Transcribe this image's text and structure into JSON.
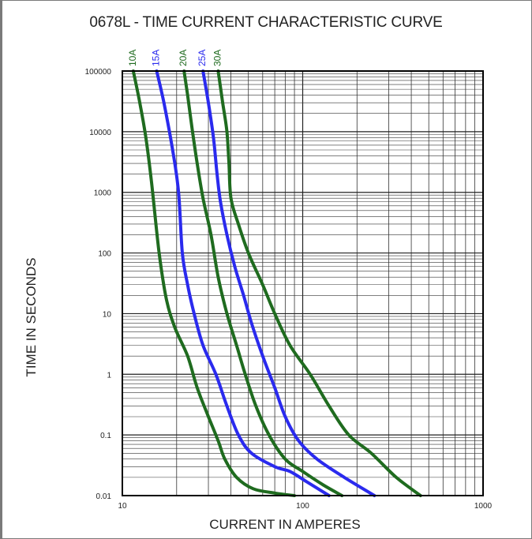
{
  "chart_data": {
    "type": "line",
    "title": "0678L - TIME CURRENT CHARACTERISTIC CURVE",
    "xlabel": "CURRENT IN AMPERES",
    "ylabel": "TIME IN SECONDS",
    "xscale": "log",
    "yscale": "log",
    "xlim": [
      10,
      1000
    ],
    "ylim": [
      0.01,
      100000
    ],
    "grid": true,
    "x_ticks": [
      {
        "value": 10,
        "label": "10"
      },
      {
        "value": 100,
        "label": "100"
      },
      {
        "value": 1000,
        "label": "1000"
      }
    ],
    "y_ticks": [
      {
        "value": 0.01,
        "label": "0.01"
      },
      {
        "value": 0.1,
        "label": "0.1"
      },
      {
        "value": 1,
        "label": "1"
      },
      {
        "value": 10,
        "label": "10"
      },
      {
        "value": 100,
        "label": "100"
      },
      {
        "value": 1000,
        "label": "1000"
      },
      {
        "value": 10000,
        "label": "10000"
      },
      {
        "value": 100000,
        "label": "100000"
      }
    ],
    "series": [
      {
        "name": "10A",
        "color": "#1f6b1f",
        "points": [
          [
            11.5,
            100000
          ],
          [
            12.5,
            30000
          ],
          [
            13.5,
            8000
          ],
          [
            14.5,
            1500
          ],
          [
            16,
            100
          ],
          [
            17.5,
            18
          ],
          [
            19.5,
            6
          ],
          [
            23,
            2
          ],
          [
            26,
            0.6
          ],
          [
            30,
            0.2
          ],
          [
            34,
            0.08
          ],
          [
            37,
            0.04
          ],
          [
            43,
            0.02
          ],
          [
            53,
            0.013
          ],
          [
            70,
            0.011
          ],
          [
            90,
            0.01
          ]
        ]
      },
      {
        "name": "15A",
        "color": "#2a2aee",
        "points": [
          [
            15.5,
            100000
          ],
          [
            17,
            30000
          ],
          [
            19,
            5000
          ],
          [
            20.5,
            1000
          ],
          [
            21.5,
            100
          ],
          [
            23,
            30
          ],
          [
            25,
            10
          ],
          [
            28,
            3
          ],
          [
            33,
            1
          ],
          [
            38,
            0.3
          ],
          [
            44,
            0.1
          ],
          [
            52,
            0.05
          ],
          [
            70,
            0.03
          ],
          [
            85,
            0.025
          ],
          [
            105,
            0.017
          ],
          [
            140,
            0.01
          ]
        ]
      },
      {
        "name": "20A",
        "color": "#1f6b1f",
        "points": [
          [
            22,
            100000
          ],
          [
            23,
            40000
          ],
          [
            24.5,
            10000
          ],
          [
            26,
            3000
          ],
          [
            28,
            800
          ],
          [
            31,
            200
          ],
          [
            34,
            40
          ],
          [
            38,
            10
          ],
          [
            43,
            3
          ],
          [
            48,
            1
          ],
          [
            55,
            0.3
          ],
          [
            65,
            0.1
          ],
          [
            80,
            0.04
          ],
          [
            100,
            0.025
          ],
          [
            130,
            0.015
          ],
          [
            165,
            0.01
          ]
        ]
      },
      {
        "name": "25A",
        "color": "#2a2aee",
        "points": [
          [
            28,
            100000
          ],
          [
            30,
            30000
          ],
          [
            32,
            8000
          ],
          [
            33.5,
            2000
          ],
          [
            35,
            700
          ],
          [
            38,
            200
          ],
          [
            42,
            60
          ],
          [
            47,
            20
          ],
          [
            52,
            7
          ],
          [
            60,
            2
          ],
          [
            70,
            0.6
          ],
          [
            80,
            0.2
          ],
          [
            95,
            0.08
          ],
          [
            120,
            0.04
          ],
          [
            170,
            0.02
          ],
          [
            250,
            0.01
          ]
        ]
      },
      {
        "name": "30A",
        "color": "#1f6b1f",
        "points": [
          [
            34,
            100000
          ],
          [
            36,
            30000
          ],
          [
            38,
            10000
          ],
          [
            39,
            3000
          ],
          [
            40,
            800
          ],
          [
            44,
            300
          ],
          [
            50,
            100
          ],
          [
            60,
            30
          ],
          [
            70,
            10
          ],
          [
            85,
            3
          ],
          [
            110,
            1
          ],
          [
            140,
            0.3
          ],
          [
            180,
            0.1
          ],
          [
            240,
            0.05
          ],
          [
            330,
            0.02
          ],
          [
            450,
            0.01
          ]
        ]
      }
    ]
  }
}
